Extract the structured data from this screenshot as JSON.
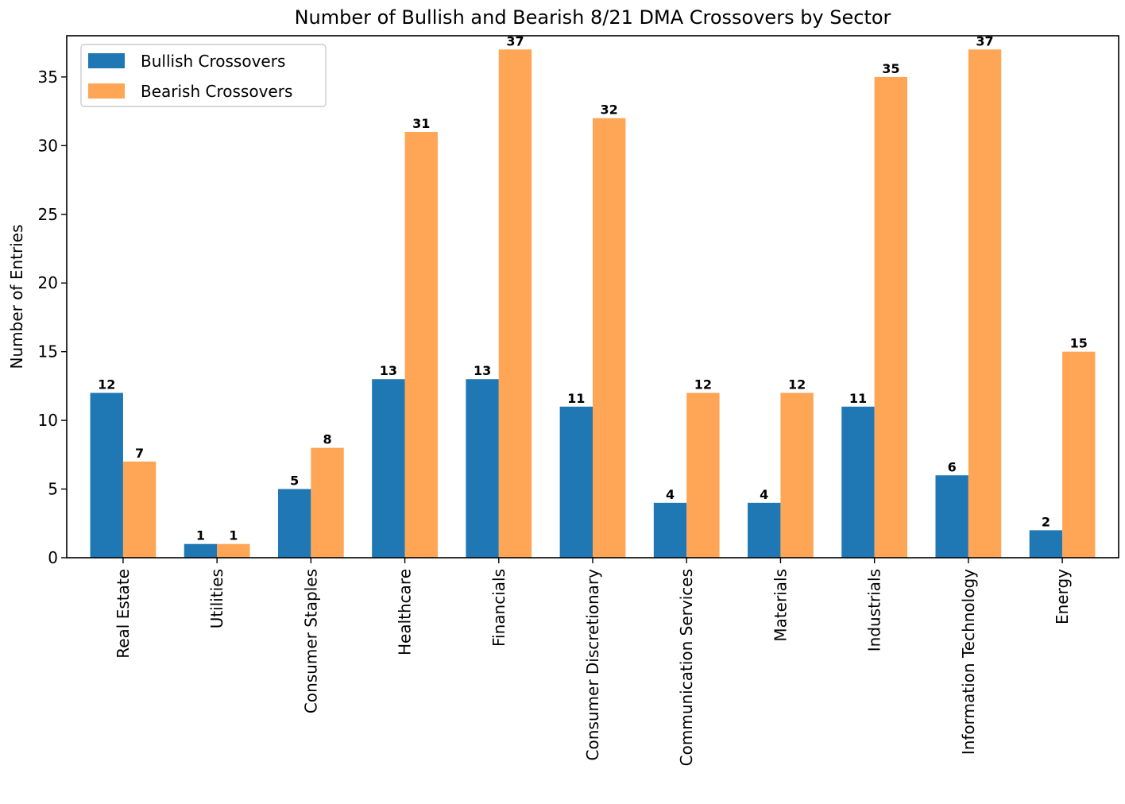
{
  "chart_data": {
    "type": "bar",
    "title": "Number of Bullish and Bearish 8/21 DMA Crossovers by Sector",
    "xlabel": "",
    "ylabel": "Number of Entries",
    "ylim": [
      0,
      38
    ],
    "yticks": [
      0,
      5,
      10,
      15,
      20,
      25,
      30,
      35
    ],
    "grid": false,
    "legend_position": "top-left",
    "categories": [
      "Real Estate",
      "Utilities",
      "Consumer Staples",
      "Healthcare",
      "Financials",
      "Consumer Discretionary",
      "Communication Services",
      "Materials",
      "Industrials",
      "Information Technology",
      "Energy"
    ],
    "series": [
      {
        "name": "Bullish Crossovers",
        "color": "#1f77b4",
        "values": [
          12,
          1,
          5,
          13,
          13,
          11,
          4,
          4,
          11,
          6,
          2
        ]
      },
      {
        "name": "Bearish Crossovers",
        "color": "#ffa556",
        "values": [
          7,
          1,
          8,
          31,
          37,
          32,
          12,
          12,
          35,
          37,
          15
        ]
      }
    ]
  }
}
